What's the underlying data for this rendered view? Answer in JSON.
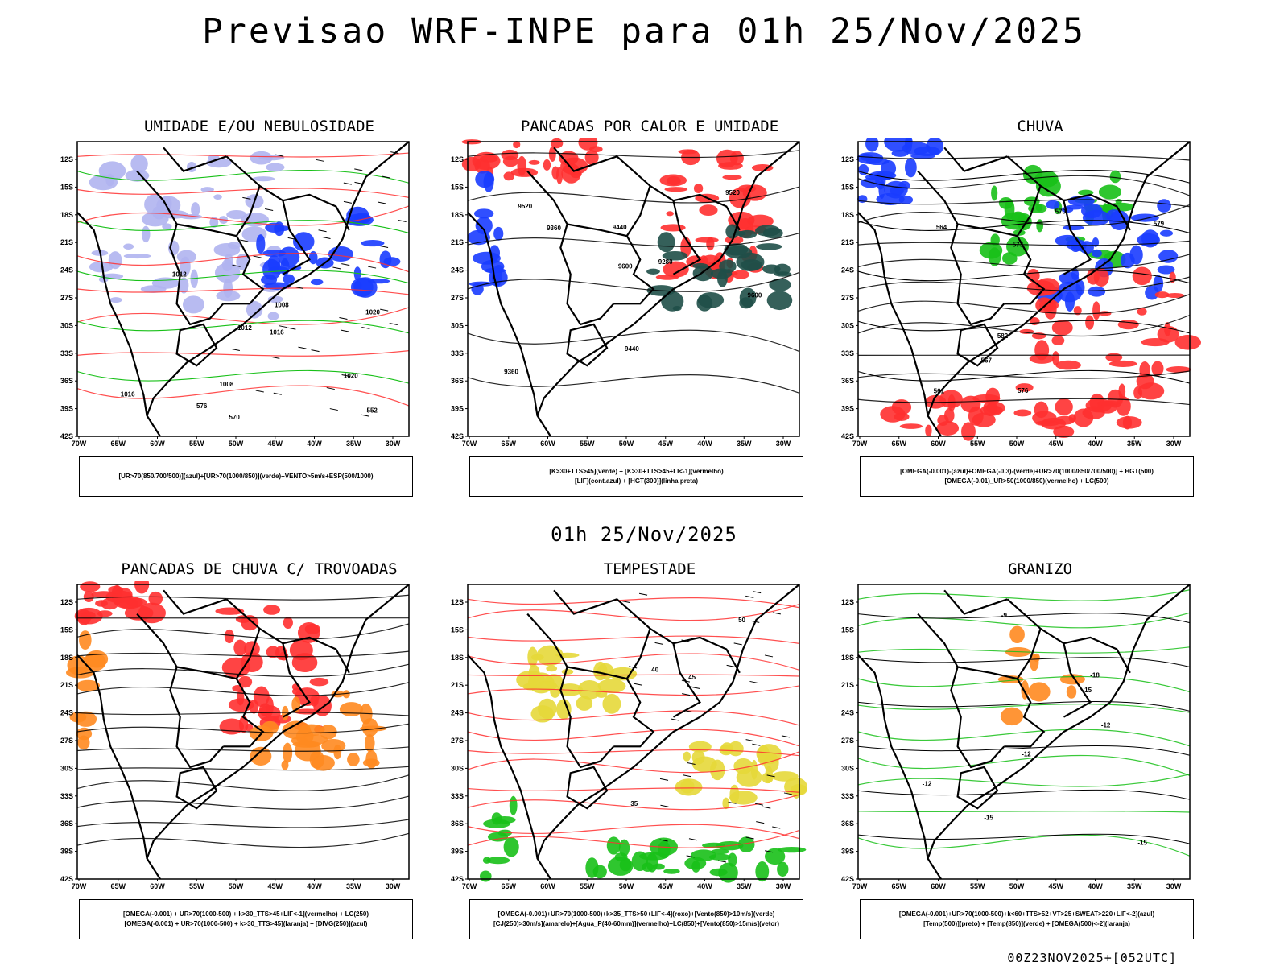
{
  "header": {
    "title": "Previsao WRF-INPE  para 01h 25/Nov/2025"
  },
  "mid_title": "01h 25/Nov/2025",
  "footer": "00Z23NOV2025+[052UTC]",
  "axes": {
    "lat_labels": [
      "12S",
      "15S",
      "18S",
      "21S",
      "24S",
      "27S",
      "30S",
      "33S",
      "36S",
      "39S",
      "42S"
    ],
    "lon_labels": [
      "70W",
      "65W",
      "60W",
      "55W",
      "50W",
      "45W",
      "40W",
      "35W",
      "30W"
    ]
  },
  "colors": {
    "blue": "#1a3cff",
    "green": "#18c018",
    "red": "#ff3030",
    "orange": "#ff8a20",
    "yellow": "#e6d83a",
    "darkteal": "#1f4f48",
    "lavender": "#b0b4f0",
    "black": "#000000"
  },
  "panels": [
    {
      "id": "umidade",
      "title": "UMIDADE E/OU NEBULOSIDADE",
      "legend": [
        "[UR>70(850/700/500)](azul)+[UR>70(1000/850)](verde)+VENTO>5m/s+ESP(500/1000)"
      ],
      "contour_labels": [
        "1012",
        "1008",
        "1020",
        "576",
        "570",
        "1016",
        "1020",
        "1016",
        "552",
        "1012",
        "1008"
      ]
    },
    {
      "id": "pancadas",
      "title": "PANCADAS POR CALOR E UMIDADE",
      "legend": [
        "[K>30+TTS>45](verde) + [K>30+TTS>45+LI<-1](vermelho)",
        "[LIF](cont.azul) + [HGT(300)](linha preta)"
      ],
      "contour_labels": [
        "9600",
        "9600",
        "9520",
        "9520",
        "9440",
        "9360",
        "9440",
        "9280",
        "9360"
      ]
    },
    {
      "id": "chuva",
      "title": "CHUVA",
      "legend": [
        "[OMEGA(-0.001)-(azul)+OMEGA(-0.3)-(verde)+UR>70(1000/850/700/500)] + HGT(500)",
        "[OMEGA(-0.01)_UR>50(1000/850)(vermelho) + LC(500)"
      ],
      "contour_labels": [
        "582",
        "573",
        "576",
        "570",
        "567",
        "564",
        "561",
        "579"
      ]
    },
    {
      "id": "trovoadas",
      "title": "PANCADAS DE CHUVA C/ TROVOADAS",
      "legend": [
        "[OMEGA(-0.001) + UR>70(1000-500) + k>30_TTS>45+LIF<-1](vermelho) + LC(250)",
        "[OMEGA(-0.001) + UR>70(1000-500) + k>30_TTS>45](laranja) + [DIVG(250)](azul)"
      ],
      "contour_labels": []
    },
    {
      "id": "tempestade",
      "title": "TEMPESTADE",
      "legend": [
        "[OMEGA(-0.001)+UR>70(1000-500)+k>35_TTS>50+LIF<-4](roxo)+[Vento(850)>10m/s](verde)",
        "[CJ(250)>30m/s](amarelo)+[Agua_P(40-60mm)](vermelho)+LC(850)+[Vento(850)>15m/s](vetor)"
      ],
      "contour_labels": [
        "50",
        "45",
        "40",
        "35"
      ]
    },
    {
      "id": "granizo",
      "title": "GRANIZO",
      "legend": [
        "[OMEGA(-0.001)+UR>70(1000-500)+k<60+TTS>52+VT>25+SWEAT>220+LIF<-2](azul)",
        "[Temp(500)](preto) + [Temp(850)](verde) + [OMEGA(500)<-2](laranja)"
      ],
      "contour_labels": [
        "-12",
        "-15",
        "-12",
        "-18",
        "-15",
        "-12",
        "-15",
        "-9"
      ]
    }
  ]
}
